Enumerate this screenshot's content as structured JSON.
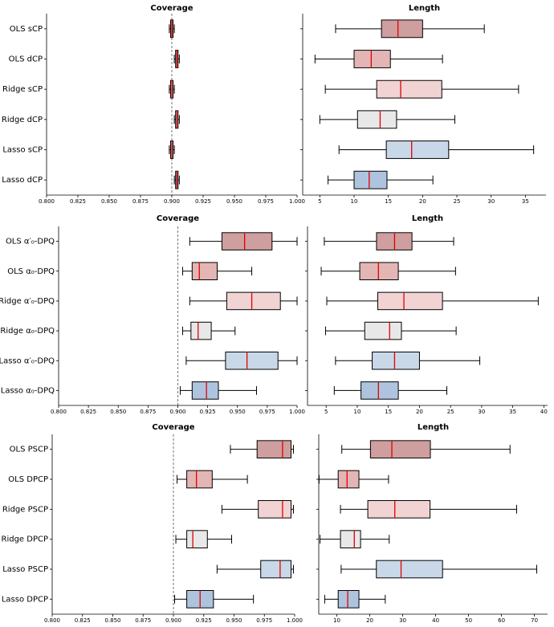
{
  "chart_data": [
    {
      "type": "boxplot",
      "title": "Coverage",
      "categories": [
        "OLS sCP",
        "OLS dCP",
        "Ridge sCP",
        "Ridge dCP",
        "Lasso sCP",
        "Lasso dCP"
      ],
      "boxes": [
        {
          "whislo": 0.898,
          "q1": 0.899,
          "med": 0.9,
          "q3": 0.901,
          "whishi": 0.902
        },
        {
          "whislo": 0.902,
          "q1": 0.903,
          "med": 0.904,
          "q3": 0.905,
          "whishi": 0.906
        },
        {
          "whislo": 0.898,
          "q1": 0.899,
          "med": 0.9,
          "q3": 0.901,
          "whishi": 0.902
        },
        {
          "whislo": 0.902,
          "q1": 0.903,
          "med": 0.904,
          "q3": 0.905,
          "whishi": 0.906
        },
        {
          "whislo": 0.898,
          "q1": 0.899,
          "med": 0.9,
          "q3": 0.901,
          "whishi": 0.902
        },
        {
          "whislo": 0.902,
          "q1": 0.903,
          "med": 0.904,
          "q3": 0.905,
          "whishi": 0.906
        }
      ],
      "colors": [
        "#cf9e9e",
        "#e3b5b5",
        "#f2d3d3",
        "#e8e8e8",
        "#c9d8e8",
        "#aec4de"
      ],
      "xlim": [
        0.8,
        1.0
      ],
      "xticks": [
        {
          "value": 0.8,
          "label": "0.800"
        },
        {
          "value": 0.825,
          "label": "0.825"
        },
        {
          "value": 0.85,
          "label": "0.850"
        },
        {
          "value": 0.875,
          "label": "0.875"
        },
        {
          "value": 0.9,
          "label": "0.900"
        },
        {
          "value": 0.925,
          "label": "0.925"
        },
        {
          "value": 0.95,
          "label": "0.950"
        },
        {
          "value": 0.975,
          "label": "0.975"
        },
        {
          "value": 1.0,
          "label": "1.000"
        }
      ],
      "vline": 0.9
    },
    {
      "type": "boxplot",
      "title": "Length",
      "boxes": [
        {
          "whislo": 7.3,
          "q1": 14.0,
          "med": 16.4,
          "q3": 20.0,
          "whishi": 29.0
        },
        {
          "whislo": 4.3,
          "q1": 10.0,
          "med": 12.5,
          "q3": 15.3,
          "whishi": 22.9
        },
        {
          "whislo": 5.8,
          "q1": 13.3,
          "med": 16.8,
          "q3": 22.8,
          "whishi": 34.0
        },
        {
          "whislo": 5.0,
          "q1": 10.5,
          "med": 13.8,
          "q3": 16.2,
          "whishi": 24.7
        },
        {
          "whislo": 7.8,
          "q1": 14.7,
          "med": 18.4,
          "q3": 23.8,
          "whishi": 36.2
        },
        {
          "whislo": 6.2,
          "q1": 10.0,
          "med": 12.2,
          "q3": 14.8,
          "whishi": 21.5
        }
      ],
      "colors": [
        "#cf9e9e",
        "#e3b5b5",
        "#f2d3d3",
        "#e8e8e8",
        "#c9d8e8",
        "#aec4de"
      ],
      "xlim": [
        2.5,
        38
      ],
      "xticks": [
        5,
        10,
        15,
        20,
        25,
        30,
        35
      ]
    },
    {
      "type": "boxplot",
      "title": "Coverage",
      "categories": [
        "OLS α′₀-DPQ",
        "OLS α₀-DPQ",
        "Ridge α′₀-DPQ",
        "Ridge α₀-DPQ",
        "Lasso α′₀-DPQ",
        "Lasso α₀-DPQ"
      ],
      "boxes": [
        {
          "whislo": 0.91,
          "q1": 0.937,
          "med": 0.956,
          "q3": 0.979,
          "whishi": 1.0
        },
        {
          "whislo": 0.904,
          "q1": 0.912,
          "med": 0.918,
          "q3": 0.933,
          "whishi": 0.962
        },
        {
          "whislo": 0.91,
          "q1": 0.941,
          "med": 0.962,
          "q3": 0.986,
          "whishi": 1.0
        },
        {
          "whislo": 0.904,
          "q1": 0.911,
          "med": 0.917,
          "q3": 0.928,
          "whishi": 0.948
        },
        {
          "whislo": 0.907,
          "q1": 0.94,
          "med": 0.958,
          "q3": 0.984,
          "whishi": 1.0
        },
        {
          "whislo": 0.902,
          "q1": 0.912,
          "med": 0.924,
          "q3": 0.934,
          "whishi": 0.966
        }
      ],
      "colors": [
        "#cf9e9e",
        "#e3b5b5",
        "#f2d3d3",
        "#e8e8e8",
        "#c9d8e8",
        "#aec4de"
      ],
      "xlim": [
        0.8,
        1.0
      ],
      "xticks": [
        {
          "value": 0.8,
          "label": "0.800"
        },
        {
          "value": 0.825,
          "label": "0.825"
        },
        {
          "value": 0.85,
          "label": "0.850"
        },
        {
          "value": 0.875,
          "label": "0.875"
        },
        {
          "value": 0.9,
          "label": "0.900"
        },
        {
          "value": 0.925,
          "label": "0.925"
        },
        {
          "value": 0.95,
          "label": "0.950"
        },
        {
          "value": 0.975,
          "label": "0.975"
        },
        {
          "value": 1.0,
          "label": "1.000"
        }
      ],
      "vline": 0.9
    },
    {
      "type": "boxplot",
      "title": "Length",
      "boxes": [
        {
          "whislo": 4.7,
          "q1": 13.1,
          "med": 16.0,
          "q3": 18.8,
          "whishi": 25.5
        },
        {
          "whislo": 4.2,
          "q1": 10.4,
          "med": 13.4,
          "q3": 16.6,
          "whishi": 25.8
        },
        {
          "whislo": 5.1,
          "q1": 13.3,
          "med": 17.5,
          "q3": 23.7,
          "whishi": 39.1
        },
        {
          "whislo": 4.9,
          "q1": 11.2,
          "med": 15.2,
          "q3": 17.1,
          "whishi": 25.9
        },
        {
          "whislo": 6.5,
          "q1": 12.4,
          "med": 16.0,
          "q3": 20.0,
          "whishi": 29.7
        },
        {
          "whislo": 6.3,
          "q1": 10.6,
          "med": 13.4,
          "q3": 16.6,
          "whishi": 24.4
        }
      ],
      "colors": [
        "#cf9e9e",
        "#e3b5b5",
        "#f2d3d3",
        "#e8e8e8",
        "#c9d8e8",
        "#aec4de"
      ],
      "xlim": [
        2,
        40.6
      ],
      "xticks": [
        5,
        10,
        15,
        20,
        25,
        30,
        35,
        40
      ]
    },
    {
      "type": "boxplot",
      "title": "Coverage",
      "categories": [
        "OLS PSCP",
        "OLS DPCP",
        "Ridge PSCP",
        "Ridge DPCP",
        "Lasso PSCP",
        "Lasso DPCP"
      ],
      "boxes": [
        {
          "whislo": 0.947,
          "q1": 0.969,
          "med": 0.99,
          "q3": 0.997,
          "whishi": 0.999
        },
        {
          "whislo": 0.903,
          "q1": 0.911,
          "med": 0.919,
          "q3": 0.932,
          "whishi": 0.961
        },
        {
          "whislo": 0.94,
          "q1": 0.97,
          "med": 0.99,
          "q3": 0.997,
          "whishi": 0.999
        },
        {
          "whislo": 0.902,
          "q1": 0.911,
          "med": 0.916,
          "q3": 0.928,
          "whishi": 0.948
        },
        {
          "whislo": 0.936,
          "q1": 0.972,
          "med": 0.988,
          "q3": 0.997,
          "whishi": 0.999
        },
        {
          "whislo": 0.901,
          "q1": 0.911,
          "med": 0.922,
          "q3": 0.933,
          "whishi": 0.966
        }
      ],
      "colors": [
        "#cf9e9e",
        "#e3b5b5",
        "#f2d3d3",
        "#e8e8e8",
        "#c9d8e8",
        "#aec4de"
      ],
      "xlim": [
        0.8,
        1.0
      ],
      "xticks": [
        {
          "value": 0.8,
          "label": "0.800"
        },
        {
          "value": 0.825,
          "label": "0.825"
        },
        {
          "value": 0.85,
          "label": "0.850"
        },
        {
          "value": 0.875,
          "label": "0.875"
        },
        {
          "value": 0.9,
          "label": "0.900"
        },
        {
          "value": 0.925,
          "label": "0.925"
        },
        {
          "value": 0.95,
          "label": "0.950"
        },
        {
          "value": 0.975,
          "label": "0.975"
        },
        {
          "value": 1.0,
          "label": "1.000"
        }
      ],
      "vline": 0.9
    },
    {
      "type": "boxplot",
      "title": "Length",
      "boxes": [
        {
          "whislo": 11.5,
          "q1": 20.2,
          "med": 26.7,
          "q3": 38.4,
          "whishi": 62.6
        },
        {
          "whislo": 4.6,
          "q1": 10.4,
          "med": 13.1,
          "q3": 16.7,
          "whishi": 25.7
        },
        {
          "whislo": 11.1,
          "q1": 19.4,
          "med": 27.6,
          "q3": 38.3,
          "whishi": 64.6
        },
        {
          "whislo": 4.9,
          "q1": 11.1,
          "med": 15.3,
          "q3": 17.2,
          "whishi": 25.9
        },
        {
          "whislo": 11.3,
          "q1": 22.0,
          "med": 29.5,
          "q3": 42.1,
          "whishi": 70.7
        },
        {
          "whislo": 6.3,
          "q1": 10.4,
          "med": 13.3,
          "q3": 16.7,
          "whishi": 24.7
        }
      ],
      "colors": [
        "#cf9e9e",
        "#e3b5b5",
        "#f2d3d3",
        "#e8e8e8",
        "#c9d8e8",
        "#aec4de"
      ],
      "xlim": [
        4.5,
        74
      ],
      "xticks": [
        10,
        20,
        30,
        40,
        50,
        60,
        70
      ]
    }
  ]
}
